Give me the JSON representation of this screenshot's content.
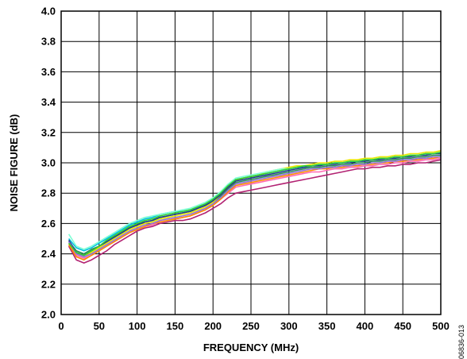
{
  "chart_data": {
    "type": "line",
    "title": "",
    "xlabel": "FREQUENCY (MHz)",
    "ylabel": "NOISE FIGURE (dB)",
    "xlim": [
      0,
      500
    ],
    "ylim": [
      2.0,
      4.0
    ],
    "xticks": [
      "0",
      "50",
      "100",
      "150",
      "200",
      "250",
      "300",
      "350",
      "400",
      "450",
      "500"
    ],
    "yticks": [
      "2.0",
      "2.2",
      "2.4",
      "2.6",
      "2.8",
      "3.0",
      "3.2",
      "3.4",
      "3.6",
      "3.8",
      "4.0"
    ],
    "grid": true,
    "legend": "none",
    "figure_id": "06836-013",
    "x": [
      10,
      20,
      30,
      40,
      50,
      60,
      70,
      80,
      90,
      100,
      110,
      120,
      130,
      140,
      150,
      160,
      170,
      180,
      190,
      200,
      210,
      220,
      230,
      240,
      250,
      260,
      270,
      280,
      290,
      300,
      310,
      320,
      330,
      340,
      350,
      360,
      370,
      380,
      390,
      400,
      410,
      420,
      430,
      440,
      450,
      460,
      470,
      480,
      490,
      500
    ],
    "series": [
      {
        "color": "#2e8b57",
        "values": [
          2.48,
          2.42,
          2.4,
          2.43,
          2.45,
          2.48,
          2.51,
          2.54,
          2.57,
          2.59,
          2.61,
          2.62,
          2.64,
          2.65,
          2.66,
          2.67,
          2.68,
          2.7,
          2.72,
          2.74,
          2.78,
          2.83,
          2.87,
          2.88,
          2.89,
          2.9,
          2.91,
          2.92,
          2.93,
          2.94,
          2.95,
          2.96,
          2.97,
          2.97,
          2.98,
          2.98,
          2.99,
          2.99,
          3.0,
          3.0,
          3.01,
          3.01,
          3.02,
          3.02,
          3.03,
          3.03,
          3.04,
          3.04,
          3.05,
          3.05
        ]
      },
      {
        "color": "#b22272",
        "values": [
          2.45,
          2.36,
          2.34,
          2.36,
          2.39,
          2.42,
          2.46,
          2.49,
          2.52,
          2.55,
          2.57,
          2.58,
          2.6,
          2.61,
          2.62,
          2.62,
          2.63,
          2.65,
          2.67,
          2.7,
          2.73,
          2.77,
          2.8,
          2.81,
          2.82,
          2.83,
          2.84,
          2.85,
          2.86,
          2.87,
          2.88,
          2.89,
          2.9,
          2.91,
          2.92,
          2.93,
          2.94,
          2.95,
          2.96,
          2.96,
          2.97,
          2.97,
          2.98,
          2.98,
          2.99,
          2.99,
          3.0,
          3.0,
          3.01,
          3.02
        ]
      },
      {
        "color": "#00c0e0",
        "values": [
          2.5,
          2.44,
          2.42,
          2.44,
          2.47,
          2.5,
          2.53,
          2.56,
          2.59,
          2.61,
          2.63,
          2.64,
          2.66,
          2.67,
          2.68,
          2.68,
          2.69,
          2.71,
          2.73,
          2.76,
          2.8,
          2.85,
          2.89,
          2.9,
          2.91,
          2.92,
          2.93,
          2.94,
          2.95,
          2.96,
          2.97,
          2.97,
          2.98,
          2.99,
          2.99,
          3.0,
          3.0,
          3.01,
          3.01,
          3.02,
          3.02,
          3.03,
          3.03,
          3.04,
          3.04,
          3.05,
          3.05,
          3.06,
          3.06,
          3.07
        ]
      },
      {
        "color": "#e8e800",
        "values": [
          2.47,
          2.4,
          2.38,
          2.41,
          2.44,
          2.47,
          2.5,
          2.53,
          2.56,
          2.58,
          2.6,
          2.61,
          2.63,
          2.64,
          2.65,
          2.66,
          2.67,
          2.69,
          2.71,
          2.74,
          2.79,
          2.84,
          2.88,
          2.9,
          2.91,
          2.92,
          2.94,
          2.95,
          2.96,
          2.97,
          2.98,
          2.98,
          2.99,
          3.0,
          3.0,
          3.01,
          3.01,
          3.02,
          3.02,
          3.03,
          3.03,
          3.04,
          3.04,
          3.05,
          3.05,
          3.06,
          3.06,
          3.07,
          3.07,
          3.08
        ]
      },
      {
        "color": "#ff69b4",
        "values": [
          2.46,
          2.39,
          2.37,
          2.39,
          2.42,
          2.45,
          2.48,
          2.51,
          2.54,
          2.56,
          2.58,
          2.59,
          2.61,
          2.62,
          2.63,
          2.64,
          2.65,
          2.67,
          2.69,
          2.72,
          2.76,
          2.8,
          2.84,
          2.85,
          2.86,
          2.87,
          2.88,
          2.89,
          2.9,
          2.91,
          2.92,
          2.93,
          2.94,
          2.94,
          2.95,
          2.96,
          2.96,
          2.97,
          2.97,
          2.98,
          2.98,
          2.99,
          2.99,
          3.0,
          3.0,
          3.01,
          3.01,
          3.02,
          3.02,
          3.03
        ]
      },
      {
        "color": "#1e3a8a",
        "values": [
          2.49,
          2.41,
          2.39,
          2.42,
          2.45,
          2.48,
          2.51,
          2.54,
          2.57,
          2.59,
          2.61,
          2.62,
          2.64,
          2.65,
          2.66,
          2.67,
          2.68,
          2.7,
          2.72,
          2.75,
          2.79,
          2.84,
          2.88,
          2.89,
          2.9,
          2.91,
          2.92,
          2.93,
          2.94,
          2.95,
          2.96,
          2.97,
          2.98,
          2.98,
          2.99,
          2.99,
          3.0,
          3.0,
          3.01,
          3.01,
          3.02,
          3.02,
          3.03,
          3.03,
          3.04,
          3.04,
          3.05,
          3.05,
          3.06,
          3.06
        ]
      },
      {
        "color": "#7fffd4",
        "values": [
          2.53,
          2.45,
          2.43,
          2.45,
          2.48,
          2.51,
          2.54,
          2.57,
          2.6,
          2.62,
          2.64,
          2.65,
          2.66,
          2.67,
          2.68,
          2.69,
          2.7,
          2.72,
          2.74,
          2.77,
          2.81,
          2.86,
          2.9,
          2.91,
          2.92,
          2.93,
          2.94,
          2.95,
          2.96,
          2.96,
          2.97,
          2.98,
          2.98,
          2.99,
          2.99,
          3.0,
          3.0,
          3.01,
          3.01,
          3.02,
          3.02,
          3.03,
          3.03,
          3.04,
          3.04,
          3.05,
          3.05,
          3.06,
          3.06,
          3.07
        ]
      },
      {
        "color": "#ff8c00",
        "values": [
          2.46,
          2.38,
          2.36,
          2.39,
          2.42,
          2.45,
          2.48,
          2.51,
          2.54,
          2.56,
          2.58,
          2.6,
          2.61,
          2.62,
          2.63,
          2.64,
          2.65,
          2.67,
          2.69,
          2.72,
          2.76,
          2.81,
          2.85,
          2.86,
          2.87,
          2.88,
          2.89,
          2.9,
          2.91,
          2.92,
          2.93,
          2.94,
          2.95,
          2.96,
          2.96,
          2.97,
          2.97,
          2.98,
          2.98,
          2.99,
          2.99,
          3.0,
          3.0,
          3.01,
          3.01,
          3.02,
          3.02,
          3.03,
          3.03,
          3.04
        ]
      },
      {
        "color": "#9370db",
        "values": [
          2.48,
          2.4,
          2.38,
          2.4,
          2.43,
          2.46,
          2.49,
          2.52,
          2.55,
          2.57,
          2.59,
          2.6,
          2.62,
          2.63,
          2.64,
          2.65,
          2.66,
          2.68,
          2.7,
          2.73,
          2.77,
          2.82,
          2.86,
          2.87,
          2.88,
          2.89,
          2.9,
          2.91,
          2.92,
          2.93,
          2.94,
          2.95,
          2.96,
          2.96,
          2.97,
          2.97,
          2.98,
          2.98,
          2.99,
          2.99,
          3.0,
          3.0,
          3.01,
          3.01,
          3.02,
          3.02,
          3.03,
          3.03,
          3.04,
          3.04
        ]
      },
      {
        "color": "#32cd32",
        "values": [
          2.47,
          2.41,
          2.39,
          2.42,
          2.45,
          2.49,
          2.52,
          2.55,
          2.58,
          2.6,
          2.62,
          2.63,
          2.65,
          2.66,
          2.67,
          2.68,
          2.69,
          2.71,
          2.73,
          2.76,
          2.8,
          2.85,
          2.89,
          2.9,
          2.91,
          2.92,
          2.93,
          2.94,
          2.95,
          2.96,
          2.97,
          2.98,
          2.98,
          2.99,
          2.99,
          3.0,
          3.0,
          3.01,
          3.01,
          3.02,
          3.02,
          3.03,
          3.03,
          3.04,
          3.04,
          3.05,
          3.05,
          3.06,
          3.06,
          3.07
        ]
      }
    ]
  }
}
